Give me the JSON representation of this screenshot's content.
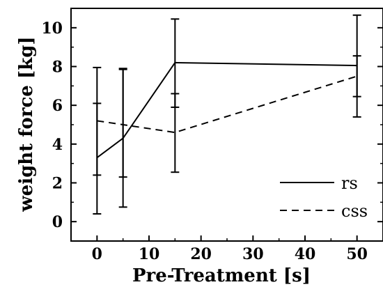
{
  "chart_data": {
    "type": "line",
    "xlabel": "Pre-Treatment [s]",
    "ylabel": "weight force [kg]",
    "xlim": [
      -5,
      55
    ],
    "ylim": [
      -1,
      11
    ],
    "xticks": [
      0,
      10,
      20,
      30,
      40,
      50
    ],
    "yticks": [
      0,
      2,
      4,
      6,
      8,
      10
    ],
    "x_tick_labels": [
      "0",
      "10",
      "20",
      "30",
      "40",
      "50"
    ],
    "y_tick_labels": [
      "0",
      "2",
      "4",
      "6",
      "8",
      "10"
    ],
    "grid": false,
    "legend_position": "bottom-right",
    "x": [
      0,
      5,
      15,
      50
    ],
    "series": [
      {
        "name": "rs",
        "style": "solid",
        "values": [
          3.3,
          4.3,
          8.2,
          8.05
        ],
        "error_low": [
          0.4,
          0.75,
          2.55,
          5.4
        ],
        "error_high": [
          7.95,
          7.9,
          10.45,
          10.65
        ]
      },
      {
        "name": "css",
        "style": "dashed",
        "values": [
          5.2,
          5.0,
          4.6,
          7.5
        ],
        "error_low": [
          2.4,
          2.3,
          5.9,
          6.45
        ],
        "error_high": [
          6.1,
          7.85,
          6.6,
          8.55
        ]
      }
    ]
  },
  "colors": {
    "line": "#000000",
    "background": "#ffffff"
  }
}
